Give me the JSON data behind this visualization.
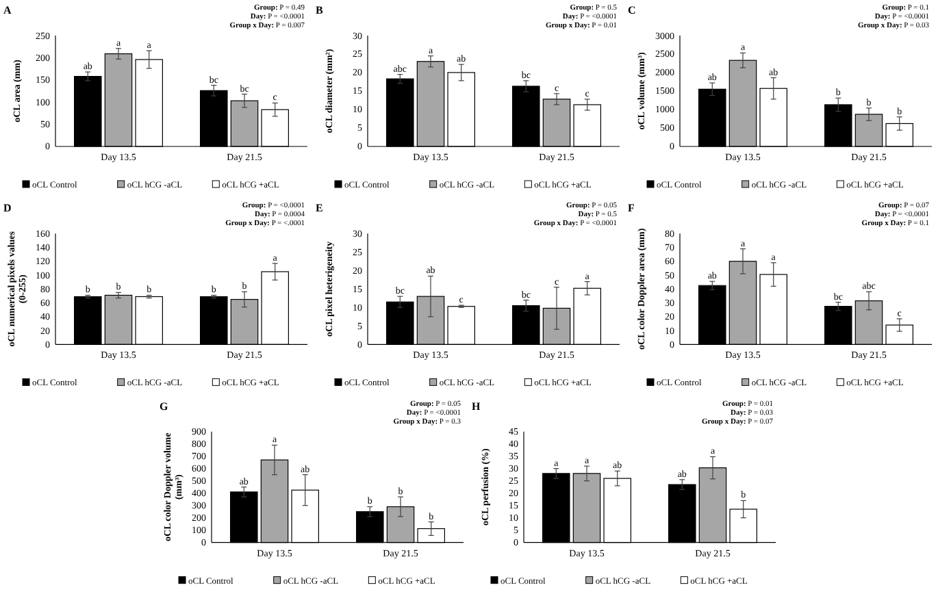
{
  "chart_data": [
    {
      "type": "bar",
      "title": "A",
      "ylabel": "oCL area (mm)",
      "categories": [
        "Day 13.5",
        "Day 21.5"
      ],
      "ylim": [
        0,
        250
      ],
      "yticks": [
        0,
        50,
        100,
        150,
        200,
        250
      ],
      "legend": "bottom",
      "annotations": [
        "Group: P = 0.49",
        "Day: P = <0.0001",
        "Group x Day: P = 0.007"
      ],
      "series": [
        {
          "name": "oCL Control",
          "color": "#000000",
          "values": [
            158,
            126
          ],
          "errors": [
            10,
            12
          ],
          "value_labels": [
            "ab",
            "bc"
          ]
        },
        {
          "name": "oCL hCG -aCL",
          "color": "#a6a6a6",
          "values": [
            209,
            103
          ],
          "errors": [
            12,
            15
          ],
          "value_labels": [
            "a",
            "bc"
          ]
        },
        {
          "name": "oCL hCG +aCL",
          "color": "#ffffff",
          "values": [
            196,
            83
          ],
          "errors": [
            20,
            15
          ],
          "value_labels": [
            "a",
            "c"
          ]
        }
      ]
    },
    {
      "type": "bar",
      "title": "B",
      "ylabel": "oCL diameter (mm²)",
      "categories": [
        "Day 13.5",
        "Day 21.5"
      ],
      "ylim": [
        0,
        30
      ],
      "yticks": [
        0,
        5,
        10,
        15,
        20,
        25,
        30
      ],
      "legend": "bottom",
      "annotations": [
        "Group: P = 0.5",
        "Day: P = <0.0001",
        "Group x Day: P = 0.01"
      ],
      "series": [
        {
          "name": "oCL Control",
          "color": "#000000",
          "values": [
            18.3,
            16.3
          ],
          "errors": [
            1.2,
            1.5
          ],
          "value_labels": [
            "abc",
            "bc"
          ]
        },
        {
          "name": "oCL hCG -aCL",
          "color": "#a6a6a6",
          "values": [
            23,
            12.8
          ],
          "errors": [
            1.5,
            1.5
          ],
          "value_labels": [
            "a",
            "c"
          ]
        },
        {
          "name": "oCL hCG +aCL",
          "color": "#ffffff",
          "values": [
            20,
            11.3
          ],
          "errors": [
            2.2,
            1.5
          ],
          "value_labels": [
            "ab",
            "c"
          ]
        }
      ]
    },
    {
      "type": "bar",
      "title": "C",
      "ylabel": "oCL volume (mm³)",
      "categories": [
        "Day 13.5",
        "Day 21.5"
      ],
      "ylim": [
        0,
        3000
      ],
      "yticks": [
        0,
        500,
        1000,
        1500,
        2000,
        2500,
        3000
      ],
      "legend": "bottom",
      "annotations": [
        "Group: P = 0.1",
        "Day: P = <0.0001",
        "Group x Day: P = 0.03"
      ],
      "series": [
        {
          "name": "oCL Control",
          "color": "#000000",
          "values": [
            1550,
            1130
          ],
          "errors": [
            170,
            180
          ],
          "value_labels": [
            "ab",
            "b"
          ]
        },
        {
          "name": "oCL hCG -aCL",
          "color": "#a6a6a6",
          "values": [
            2330,
            870
          ],
          "errors": [
            200,
            170
          ],
          "value_labels": [
            "a",
            "b"
          ]
        },
        {
          "name": "oCL hCG +aCL",
          "color": "#ffffff",
          "values": [
            1570,
            620
          ],
          "errors": [
            290,
            180
          ],
          "value_labels": [
            "ab",
            "b"
          ]
        }
      ]
    },
    {
      "type": "bar",
      "title": "D",
      "ylabel": "oCL numerical pixels values (0-255)",
      "categories": [
        "Day 13.5",
        "Day 21.5"
      ],
      "ylim": [
        0,
        160
      ],
      "yticks": [
        0,
        20,
        40,
        60,
        80,
        100,
        120,
        140,
        160
      ],
      "legend": "bottom",
      "annotations": [
        "Group: P = <0.0001",
        "Day: P = 0.0004",
        "Group x Day: P = <.0001"
      ],
      "series": [
        {
          "name": "oCL Control",
          "color": "#000000",
          "values": [
            69,
            69
          ],
          "errors": [
            2,
            2
          ],
          "value_labels": [
            "b",
            "b"
          ]
        },
        {
          "name": "oCL hCG -aCL",
          "color": "#a6a6a6",
          "values": [
            71,
            65
          ],
          "errors": [
            4,
            11
          ],
          "value_labels": [
            "b",
            "b"
          ]
        },
        {
          "name": "oCL hCG +aCL",
          "color": "#ffffff",
          "values": [
            69,
            105
          ],
          "errors": [
            2,
            12
          ],
          "value_labels": [
            "b",
            "a"
          ]
        }
      ]
    },
    {
      "type": "bar",
      "title": "E",
      "ylabel": "oCL pixel heterigeneity",
      "categories": [
        "Day 13.5",
        "Day 21.5"
      ],
      "ylim": [
        0,
        30
      ],
      "yticks": [
        0,
        5,
        10,
        15,
        20,
        25,
        30
      ],
      "legend": "bottom",
      "annotations": [
        "Group: P = 0.05",
        "Day: P = 0.5",
        "Group x Day: P = <0.0001"
      ],
      "series": [
        {
          "name": "oCL Control",
          "color": "#000000",
          "values": [
            11.5,
            10.5
          ],
          "errors": [
            1.5,
            1.5
          ],
          "value_labels": [
            "bc",
            "bc"
          ]
        },
        {
          "name": "oCL hCG -aCL",
          "color": "#a6a6a6",
          "values": [
            13,
            9.8
          ],
          "errors": [
            5.5,
            5.7
          ],
          "value_labels": [
            "ab",
            "c"
          ]
        },
        {
          "name": "oCL hCG +aCL",
          "color": "#ffffff",
          "values": [
            10.3,
            15.2
          ],
          "errors": [
            0.3,
            1.8
          ],
          "value_labels": [
            "c",
            "a"
          ]
        }
      ]
    },
    {
      "type": "bar",
      "title": "F",
      "ylabel": "oCL color Doppler area (mm)",
      "categories": [
        "Day 13.5",
        "Day 21.5"
      ],
      "ylim": [
        0,
        80
      ],
      "yticks": [
        0,
        10,
        20,
        30,
        40,
        50,
        60,
        70,
        80
      ],
      "legend": "bottom",
      "annotations": [
        "Group: P = 0.07",
        "Day: P = <0.0001",
        "Group x Day: P = 0.1"
      ],
      "series": [
        {
          "name": "oCL Control",
          "color": "#000000",
          "values": [
            42.5,
            27.5
          ],
          "errors": [
            3,
            3
          ],
          "value_labels": [
            "ab",
            "bc"
          ]
        },
        {
          "name": "oCL hCG -aCL",
          "color": "#a6a6a6",
          "values": [
            60,
            31.5
          ],
          "errors": [
            9,
            6.5
          ],
          "value_labels": [
            "a",
            "abc"
          ]
        },
        {
          "name": "oCL hCG +aCL",
          "color": "#ffffff",
          "values": [
            50.5,
            14
          ],
          "errors": [
            8.5,
            4.5
          ],
          "value_labels": [
            "a",
            "c"
          ]
        }
      ]
    },
    {
      "type": "bar",
      "title": "G",
      "ylabel": "oCL color Doppler volume (mm³)",
      "categories": [
        "Day 13.5",
        "Day 21.5"
      ],
      "ylim": [
        0,
        900
      ],
      "yticks": [
        0,
        100,
        200,
        300,
        400,
        500,
        600,
        700,
        800,
        900
      ],
      "legend": "bottom",
      "annotations": [
        "Group: P = 0.05",
        "Day: P = <0.0001",
        "Group x Day: P = 0.3"
      ],
      "series": [
        {
          "name": "oCL Control",
          "color": "#000000",
          "values": [
            410,
            250
          ],
          "errors": [
            40,
            40
          ],
          "value_labels": [
            "ab",
            "b"
          ]
        },
        {
          "name": "oCL hCG -aCL",
          "color": "#a6a6a6",
          "values": [
            670,
            290
          ],
          "errors": [
            120,
            80
          ],
          "value_labels": [
            "a",
            "b"
          ]
        },
        {
          "name": "oCL hCG +aCL",
          "color": "#ffffff",
          "values": [
            425,
            112
          ],
          "errors": [
            125,
            55
          ],
          "value_labels": [
            "ab",
            "b"
          ]
        }
      ]
    },
    {
      "type": "bar",
      "title": "H",
      "ylabel": "oCL perfusion (%)",
      "categories": [
        "Day 13.5",
        "Day 21.5"
      ],
      "ylim": [
        0,
        45
      ],
      "yticks": [
        0,
        5,
        10,
        15,
        20,
        25,
        30,
        35,
        40,
        45
      ],
      "legend": "bottom",
      "annotations": [
        "Group: P = 0.01",
        "Day: P = 0.03",
        "Group x Day: P = 0.07"
      ],
      "series": [
        {
          "name": "oCL Control",
          "color": "#000000",
          "values": [
            28,
            23.5
          ],
          "errors": [
            2,
            2
          ],
          "value_labels": [
            "a",
            "ab"
          ]
        },
        {
          "name": "oCL hCG -aCL",
          "color": "#a6a6a6",
          "values": [
            28,
            30.3
          ],
          "errors": [
            3,
            4.5
          ],
          "value_labels": [
            "a",
            "a"
          ]
        },
        {
          "name": "oCL hCG +aCL",
          "color": "#ffffff",
          "values": [
            26,
            13.5
          ],
          "errors": [
            3,
            3.5
          ],
          "value_labels": [
            "ab",
            "b"
          ]
        }
      ]
    }
  ]
}
